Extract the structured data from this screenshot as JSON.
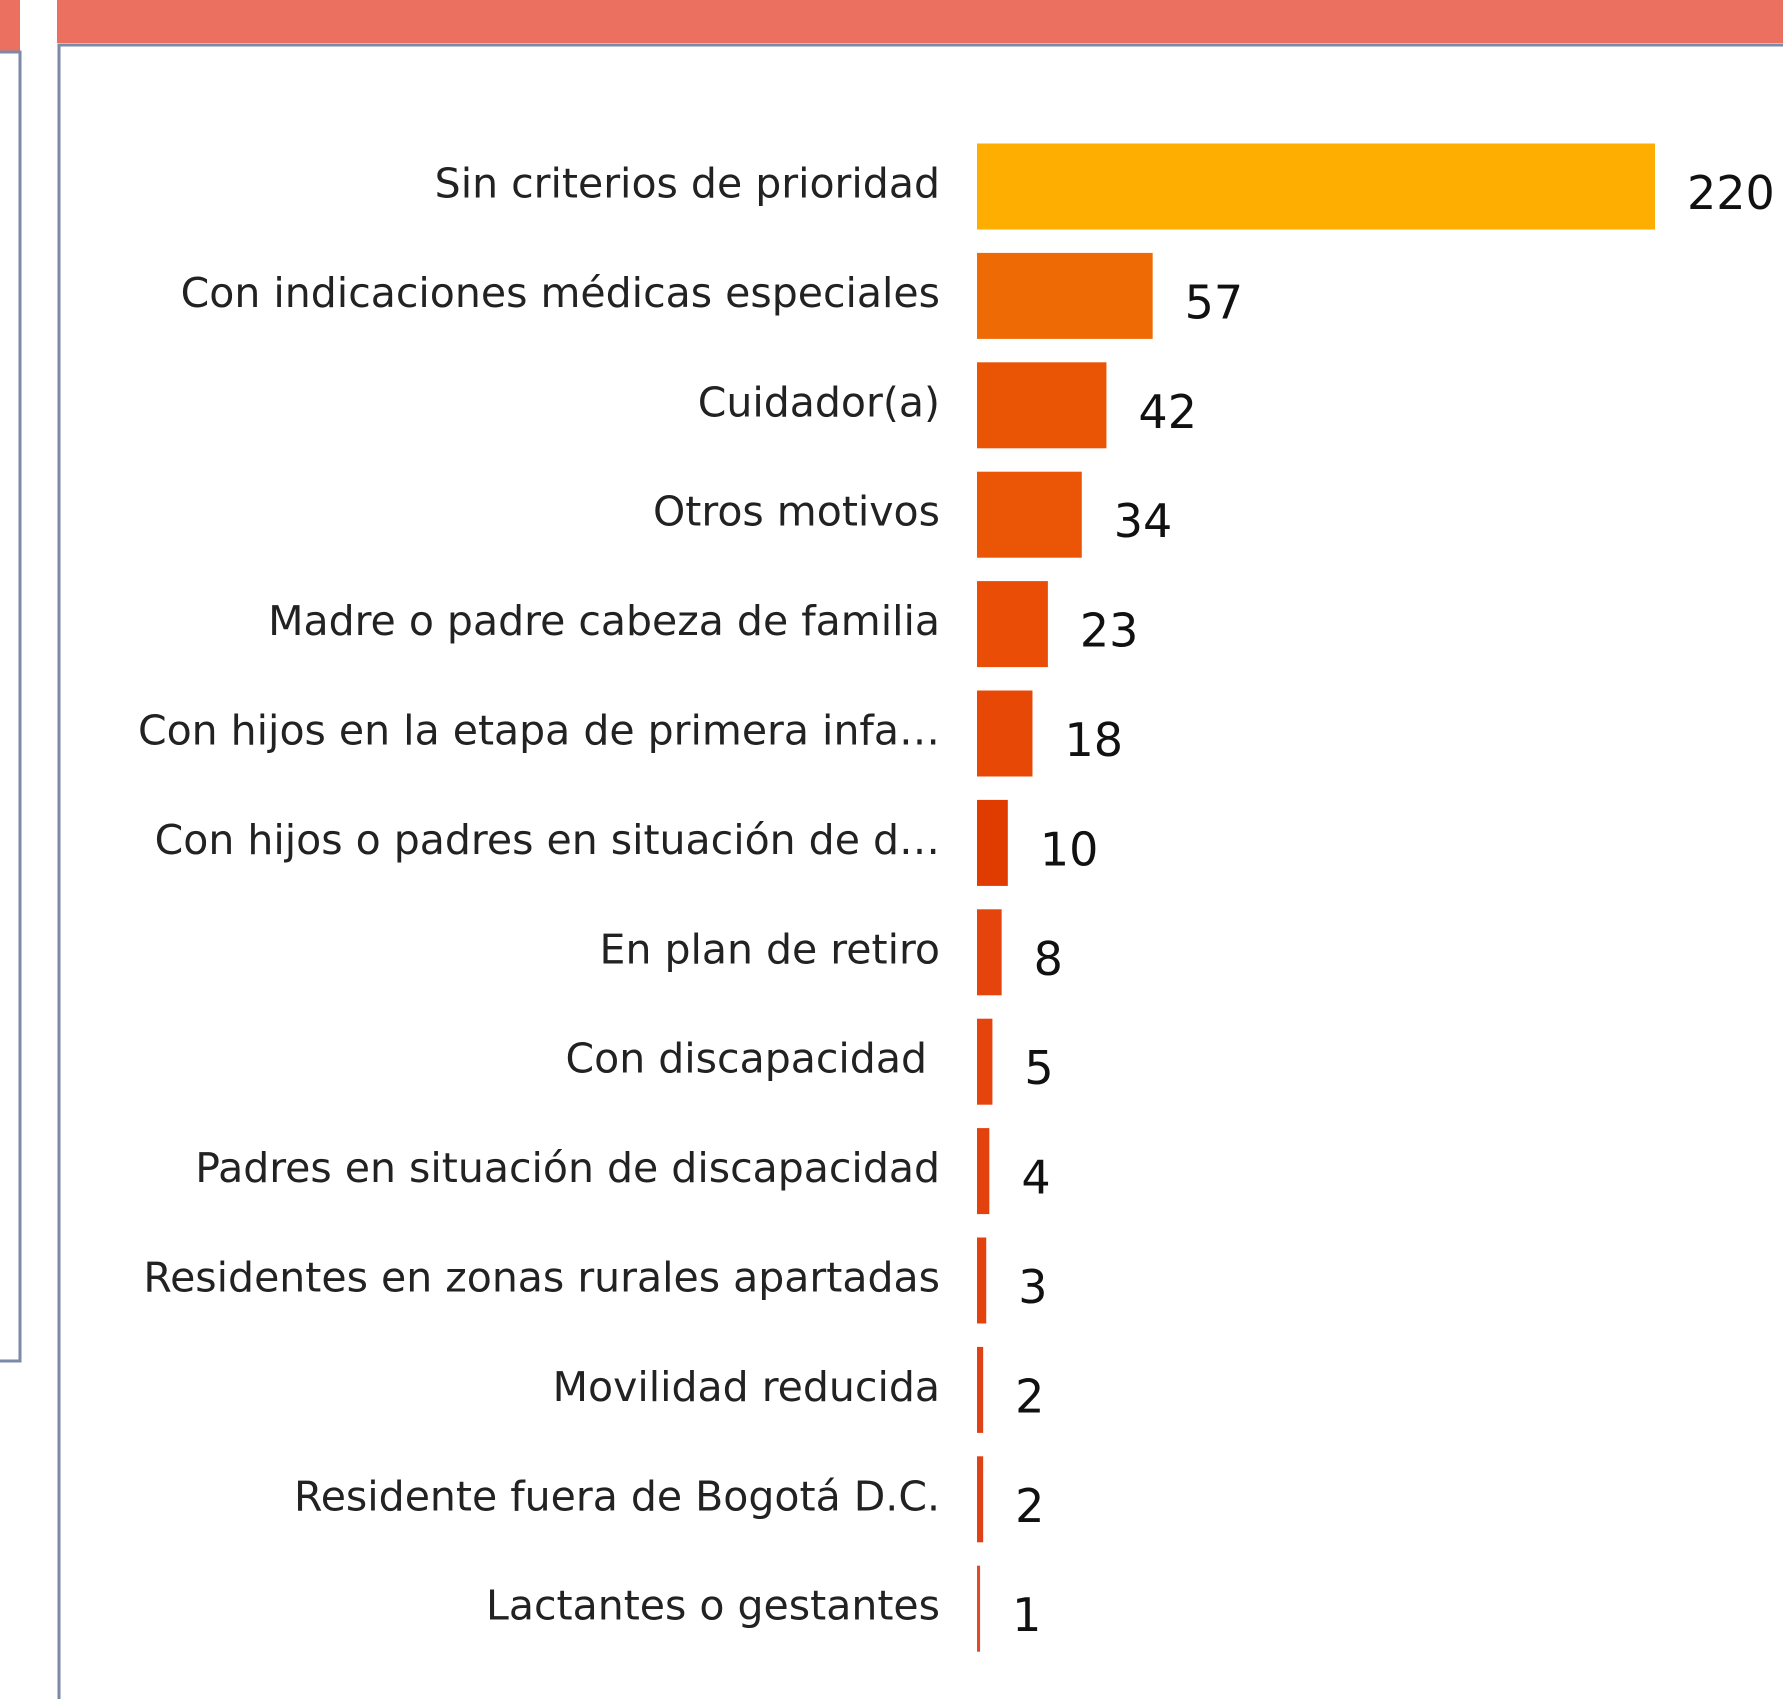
{
  "chart_data": {
    "type": "bar",
    "orientation": "horizontal",
    "categories": [
      "Sin criterios de prioridad",
      "Con indicaciones médicas especiales",
      "Cuidador(a)",
      "Otros motivos",
      "Madre o padre cabeza de familia",
      "Con hijos en la etapa de primera infa…",
      "Con hijos o padres en situación de d…",
      "En plan de retiro",
      "Con discapacidad ",
      "Padres en situación de discapacidad",
      "Residentes en zonas rurales apartadas",
      "Movilidad reducida",
      "Residente fuera de Bogotá D.C.",
      "Lactantes o gestantes"
    ],
    "values": [
      220,
      57,
      42,
      34,
      23,
      18,
      10,
      8,
      5,
      4,
      3,
      2,
      2,
      1
    ],
    "colors": [
      "#fdae00",
      "#ee6a05",
      "#ea5505",
      "#ea5506",
      "#e94d06",
      "#e84806",
      "#e03c00",
      "#e5440c",
      "#e5440c",
      "#e3420e",
      "#e3420e",
      "#e04218",
      "#e04218",
      "#e04a28"
    ]
  }
}
